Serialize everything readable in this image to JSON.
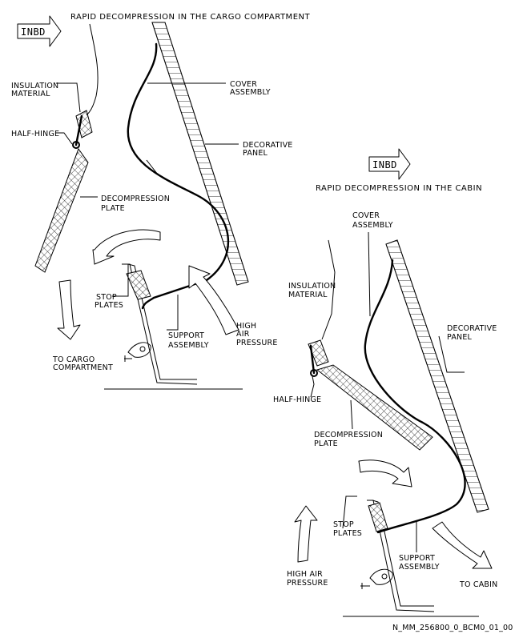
{
  "top_view": {
    "title": "RAPID DECOMPRESSION IN THE CARGO COMPARTMENT",
    "inbd": "INBD",
    "insulation": [
      "INSULATION",
      "MATERIAL"
    ],
    "half_hinge": "HALF-HINGE",
    "cover": [
      "COVER",
      "ASSEMBLY"
    ],
    "decorative": [
      "DECORATIVE",
      "PANEL"
    ],
    "decompression": [
      "DECOMPRESSION",
      "PLATE"
    ],
    "stop_plates": [
      "STOP",
      "PLATES"
    ],
    "support": [
      "SUPPORT",
      "ASSEMBLY"
    ],
    "high_air": [
      "HIGH",
      "AIR",
      "PRESSURE"
    ],
    "to_cargo": [
      "TO CARGO",
      "COMPARTMENT"
    ]
  },
  "bottom_view": {
    "title": "RAPID DECOMPRESSION IN THE CABIN",
    "inbd": "INBD",
    "cover": [
      "COVER",
      "ASSEMBLY"
    ],
    "insulation": [
      "INSULATION",
      "MATERIAL"
    ],
    "decorative": [
      "DECORATIVE",
      "PANEL"
    ],
    "half_hinge": "HALF-HINGE",
    "decompression": [
      "DECOMPRESSION",
      "PLATE"
    ],
    "stop_plates": [
      "STOP",
      "PLATES"
    ],
    "support": [
      "SUPPORT",
      "ASSEMBLY"
    ],
    "high_air": [
      "HIGH AIR",
      "PRESSURE"
    ],
    "to_cabin": "TO CABIN"
  },
  "figure_id": "N_MM_256800_0_BCM0_01_00"
}
